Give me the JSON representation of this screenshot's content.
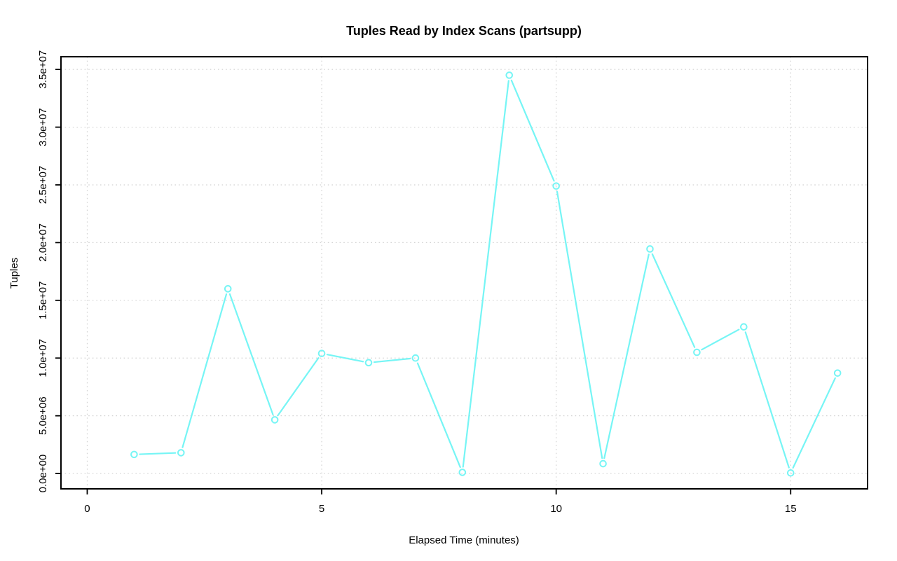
{
  "chart_data": {
    "type": "line",
    "title": "Tuples Read by Index Scans (partsupp)",
    "xlabel": "Elapsed Time (minutes)",
    "ylabel": "Tuples",
    "x": [
      1,
      2,
      3,
      4,
      5,
      6,
      7,
      8,
      9,
      10,
      11,
      12,
      13,
      14,
      15,
      16
    ],
    "values": [
      1650000,
      1800000,
      16000000,
      4650000,
      10400000,
      9600000,
      10000000,
      100000,
      34500000,
      24900000,
      850000,
      19450000,
      10500000,
      12700000,
      50000,
      8700000
    ],
    "x_ticks": [
      {
        "value": 0,
        "label": "0"
      },
      {
        "value": 5,
        "label": "5"
      },
      {
        "value": 10,
        "label": "10"
      },
      {
        "value": 15,
        "label": "15"
      }
    ],
    "y_ticks": [
      {
        "value": 0,
        "label": "0.0e+00"
      },
      {
        "value": 5000000,
        "label": "5.0e+06"
      },
      {
        "value": 10000000,
        "label": "1.0e+07"
      },
      {
        "value": 15000000,
        "label": "1.5e+07"
      },
      {
        "value": 20000000,
        "label": "2.0e+07"
      },
      {
        "value": 25000000,
        "label": "2.5e+07"
      },
      {
        "value": 30000000,
        "label": "3.0e+07"
      },
      {
        "value": 35000000,
        "label": "3.5e+07"
      }
    ],
    "xlim": [
      -0.56,
      16.64
    ],
    "ylim": [
      -1330000,
      36100000
    ],
    "grid": true,
    "legend": "none",
    "marker": "open-circle",
    "line_style": "points-and-segments",
    "colors": {
      "line": "#76f5f5",
      "grid": "#d2d2d2",
      "axis": "#000000",
      "background": "#ffffff"
    }
  }
}
